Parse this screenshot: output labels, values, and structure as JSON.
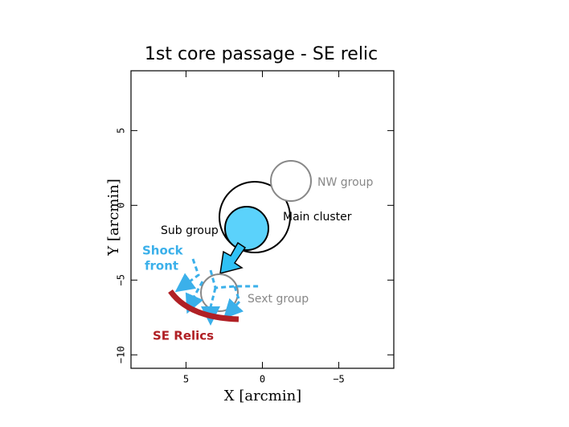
{
  "title": "1st core passage - SE relic",
  "axes": {
    "xlabel": "X [arcmin]",
    "ylabel": "Y [arcmin]",
    "xlim": [
      8.6,
      -8.6
    ],
    "ylim": [
      -10.9,
      9
    ],
    "xticks": [
      5,
      0,
      {
        "value": -5,
        "label": "−5"
      }
    ],
    "yticks": [
      {
        "value": -10,
        "label": "−10"
      },
      {
        "value": -5,
        "label": "−5"
      },
      0,
      5
    ]
  },
  "labels": {
    "nw": "NW group",
    "main": "Main cluster",
    "sub": "Sub group",
    "shock1": "Shock",
    "shock2": "front",
    "sext": "Sext group",
    "relics": "SE Relics"
  }
}
